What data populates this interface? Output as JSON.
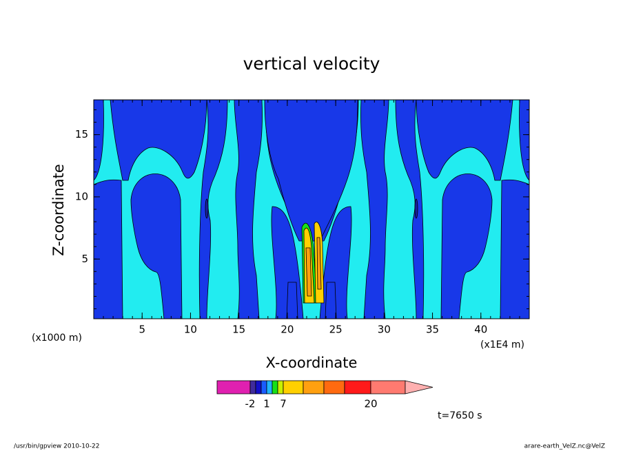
{
  "chart_data": {
    "type": "contour",
    "title": "vertical velocity",
    "x_label": "X-coordinate",
    "y_label": "Z-coordinate",
    "x_unit": "(x1000 m)",
    "x_scale": "(x1E4 m)",
    "xlim": [
      0,
      45
    ],
    "xticks": [
      5,
      10,
      15,
      20,
      25,
      30,
      35,
      40
    ],
    "ylim": [
      0.2,
      17.8
    ],
    "yticks": [
      5,
      10,
      15
    ],
    "colorbar": {
      "colors": [
        "#e020b0",
        "#402c9c",
        "#1410c8",
        "#1a5cff",
        "#20b4ff",
        "#18e018",
        "#c8f000",
        "#ffd000",
        "#ffa010",
        "#ff6a10",
        "#ff1a1a",
        "#ff7a70",
        "#ffb0b0"
      ],
      "ticks": [
        -2,
        1,
        7,
        20
      ]
    },
    "time": "t=7650 s",
    "footer_left": "/usr/bin/gpview  2010-10-22",
    "footer_right": "arare-earth_VelZ.nc@VelZ"
  }
}
